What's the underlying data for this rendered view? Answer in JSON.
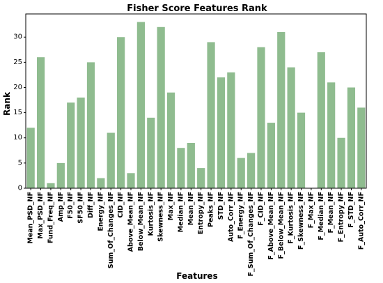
{
  "chart_data": {
    "type": "bar",
    "title": "Fisher Score Features Rank",
    "xlabel": "Features",
    "ylabel": "Rank",
    "ylim": [
      0,
      34.6
    ],
    "yticks": [
      0,
      5,
      10,
      15,
      20,
      25,
      30
    ],
    "bar_color": "#8fbc8f",
    "grid": false,
    "categories": [
      "Mean_PSD_NF",
      "Max_PSD_NF",
      "Fund_Freq_NF",
      "Amp_NF",
      "F50_NF",
      "SF50_NF",
      "Diff_NF",
      "Energy_NF",
      "Sum_Of_Changes_NF",
      "CID_NF",
      "Above_Mean_NF",
      "Below_Mean_NF",
      "Kurtosis_NF",
      "Skewness_NF",
      "Max_NF",
      "Median_NF",
      "Mean_NF",
      "Entropy_NF",
      "Peaks_NF",
      "STD_NF",
      "Auto_Corr_NF",
      "F_Energy_NF",
      "F_Sum_Of_Changes_NF",
      "F_CID_NF",
      "F_Above_Mean_NF",
      "F_Below_Mean_NF",
      "F_Kurtosis_NF",
      "F_Skewness_NF",
      "F_Max_NF",
      "F_Median_NF",
      "F_Mean_NF",
      "F_Entropy_NF",
      "F_STD_NF",
      "F_Auto_Corr_NF"
    ],
    "values": [
      12,
      26,
      1,
      5,
      17,
      18,
      25,
      2,
      11,
      30,
      3,
      33,
      14,
      32,
      19,
      8,
      9,
      4,
      29,
      22,
      23,
      6,
      7,
      28,
      13,
      31,
      24,
      15,
      0,
      27,
      21,
      10,
      20,
      16
    ]
  }
}
